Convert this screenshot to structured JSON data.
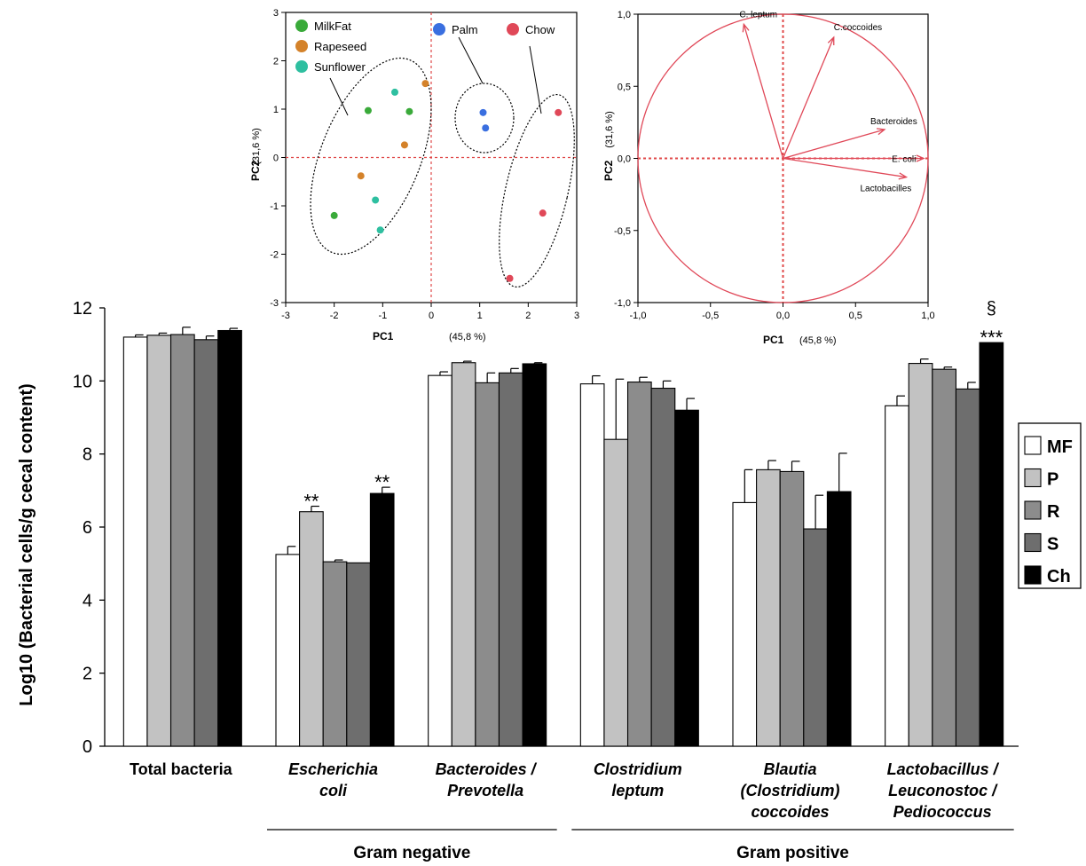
{
  "chart_data": [
    {
      "type": "scatter",
      "xlabel": "PC1",
      "xlabel_pct": "(45,8 %)",
      "ylabel": "PC2",
      "ylabel_pct": "(31,6 %)",
      "xlim": [
        -3,
        3
      ],
      "ylim": [
        -3,
        3
      ],
      "x_ticks": [
        "-3",
        "-2",
        "-1",
        "0",
        "1",
        "2",
        "3"
      ],
      "y_ticks": [
        "3",
        "2",
        "1",
        "0",
        "-1",
        "-2",
        "-3"
      ],
      "legend_placement": "top",
      "series": [
        {
          "name": "MilkFat",
          "color": "#3aaa3a",
          "points": [
            [
              -1.3,
              0.97
            ],
            [
              -0.45,
              0.95
            ],
            [
              -2.0,
              -1.2
            ]
          ]
        },
        {
          "name": "Rapeseed",
          "color": "#d4822a",
          "points": [
            [
              -0.12,
              1.53
            ],
            [
              -0.55,
              0.26
            ],
            [
              -1.45,
              -0.38
            ]
          ]
        },
        {
          "name": "Sunflower",
          "color": "#2ebfa0",
          "points": [
            [
              -0.75,
              1.35
            ],
            [
              -1.15,
              -0.88
            ],
            [
              -1.05,
              -1.5
            ]
          ]
        },
        {
          "name": "Palm",
          "color": "#3a6fe0",
          "points": [
            [
              1.07,
              0.93
            ],
            [
              1.12,
              0.61
            ]
          ]
        },
        {
          "name": "Chow",
          "color": "#e04858",
          "points": [
            [
              2.62,
              0.93
            ],
            [
              2.3,
              -1.15
            ],
            [
              1.62,
              -2.5
            ]
          ]
        }
      ]
    },
    {
      "type": "loadings",
      "xlabel": "PC1",
      "xlabel_pct": "(45,8 %)",
      "ylabel": "PC2",
      "ylabel_pct": "(31,6 %)",
      "xlim": [
        -1,
        1
      ],
      "ylim": [
        -1,
        1
      ],
      "x_ticks": [
        "-1,0",
        "-0,5",
        "0,0",
        "0,5",
        "1,0"
      ],
      "y_ticks": [
        "1,0",
        "0,5",
        "0,0",
        "-0,5",
        "-1,0"
      ],
      "vectors": [
        {
          "name": "C. leptum",
          "x": -0.27,
          "y": 0.93
        },
        {
          "name": "C.coccoides",
          "x": 0.35,
          "y": 0.84
        },
        {
          "name": "Bacteroides",
          "x": 0.7,
          "y": 0.2
        },
        {
          "name": "E. coli",
          "x": 0.97,
          "y": 0.0
        },
        {
          "name": "Lactobacilles",
          "x": 0.85,
          "y": -0.13
        }
      ]
    },
    {
      "type": "bar",
      "ylabel": "Log10 (Bacterial cells/g cecal content)",
      "ylim": [
        0,
        12
      ],
      "y_ticks": [
        "0",
        "2",
        "4",
        "6",
        "8",
        "10",
        "12"
      ],
      "categories": [
        [
          "Total bacteria"
        ],
        [
          "Escherichia",
          "coli"
        ],
        [
          "Bacteroides /",
          "Prevotella"
        ],
        [
          "Clostridium",
          "leptum"
        ],
        [
          "Blautia",
          "(Clostridium)",
          "coccoides"
        ],
        [
          "Lactobacillus /",
          "Leuconostoc /",
          "Pediococcus"
        ]
      ],
      "category_italic": [
        false,
        true,
        true,
        true,
        true,
        true
      ],
      "legend_placement": "right",
      "series": [
        {
          "name": "MF",
          "color": "#ffffff",
          "values": [
            11.2,
            5.25,
            10.15,
            9.92,
            6.67,
            9.32
          ],
          "errors": [
            0.06,
            0.22,
            0.1,
            0.22,
            0.9,
            0.27
          ]
        },
        {
          "name": "P",
          "color": "#c2c2c2",
          "values": [
            11.25,
            6.42,
            10.5,
            8.4,
            7.57,
            10.48
          ],
          "errors": [
            0.06,
            0.15,
            0.04,
            1.65,
            0.25,
            0.12
          ]
        },
        {
          "name": "R",
          "color": "#8c8c8c",
          "values": [
            11.27,
            5.05,
            9.95,
            9.97,
            7.52,
            10.32
          ],
          "errors": [
            0.2,
            0.05,
            0.27,
            0.13,
            0.28,
            0.06
          ]
        },
        {
          "name": "S",
          "color": "#6e6e6e",
          "values": [
            11.13,
            5.02,
            10.22,
            9.8,
            5.95,
            9.78
          ],
          "errors": [
            0.1,
            0.0,
            0.12,
            0.2,
            0.92,
            0.18
          ]
        },
        {
          "name": "Ch",
          "color": "#000000",
          "values": [
            11.38,
            6.92,
            10.47,
            9.2,
            6.97,
            11.05
          ],
          "errors": [
            0.06,
            0.17,
            0.03,
            0.32,
            1.05,
            0.0
          ]
        }
      ],
      "annotations": [
        {
          "category": 1,
          "series": 1,
          "text": "**"
        },
        {
          "category": 1,
          "series": 4,
          "text": "**"
        },
        {
          "category": 5,
          "series": 4,
          "text": "***"
        },
        {
          "category": 5,
          "series": 4,
          "text": "§"
        }
      ],
      "groups": [
        {
          "label": "Gram negative",
          "from": 1,
          "to": 2
        },
        {
          "label": "Gram positive",
          "from": 3,
          "to": 5
        }
      ]
    }
  ]
}
